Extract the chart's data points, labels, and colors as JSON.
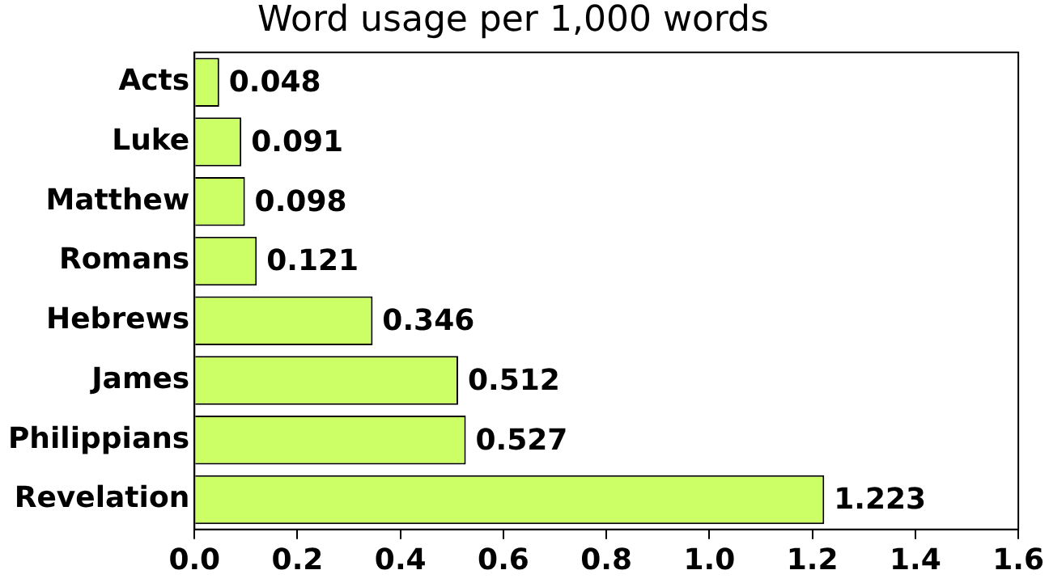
{
  "chart_data": {
    "type": "bar",
    "orientation": "horizontal",
    "title": "Word usage per 1,000 words",
    "categories": [
      "Acts",
      "Luke",
      "Matthew",
      "Romans",
      "Hebrews",
      "James",
      "Philippians",
      "Revelation"
    ],
    "values": [
      0.048,
      0.091,
      0.098,
      0.121,
      0.346,
      0.512,
      0.527,
      1.223
    ],
    "color": "#ccff66",
    "xlim": [
      0,
      1.6
    ],
    "xticks": [
      {
        "value": 0,
        "label": "0.0"
      },
      0.2,
      0.4,
      0.6,
      0.8,
      {
        "value": 1,
        "label": "1.0"
      },
      1.2,
      1.4,
      1.6
    ],
    "data_labels": true,
    "grid": false,
    "legend": false
  }
}
